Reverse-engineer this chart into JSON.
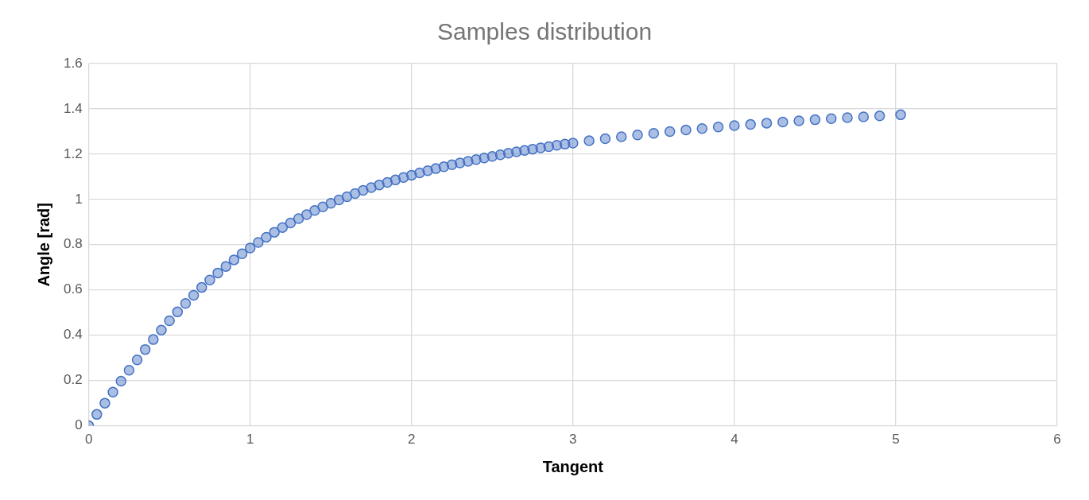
{
  "chart_data": {
    "type": "scatter",
    "title": "Samples distribution",
    "xlabel": "Tangent",
    "ylabel": "Angle [rad]",
    "series": [
      {
        "color": "#4472c4",
        "x": [
          0,
          0.05,
          0.1,
          0.15,
          0.2,
          0.25,
          0.3,
          0.35,
          0.4,
          0.45,
          0.5,
          0.55,
          0.6,
          0.65,
          0.7,
          0.75,
          0.8,
          0.85,
          0.9,
          0.95,
          1.0,
          1.05,
          1.1,
          1.15,
          1.2,
          1.25,
          1.3,
          1.35,
          1.4,
          1.45,
          1.5,
          1.55,
          1.6,
          1.65,
          1.7,
          1.75,
          1.8,
          1.85,
          1.9,
          1.95,
          2.0,
          2.05,
          2.1,
          2.15,
          2.2,
          2.25,
          2.3,
          2.35,
          2.4,
          2.45,
          2.5,
          2.55,
          2.6,
          2.65,
          2.7,
          2.75,
          2.8,
          2.85,
          2.9,
          2.95,
          3.0,
          3.1,
          3.2,
          3.3,
          3.4,
          3.5,
          3.6,
          3.7,
          3.8,
          3.9,
          4.0,
          4.1,
          4.2,
          4.3,
          4.4,
          4.5,
          4.6,
          4.7,
          4.8,
          4.9,
          5.03
        ],
        "values": [
          0,
          0.05,
          0.1,
          0.149,
          0.197,
          0.245,
          0.291,
          0.337,
          0.381,
          0.423,
          0.464,
          0.503,
          0.54,
          0.576,
          0.611,
          0.644,
          0.675,
          0.704,
          0.733,
          0.76,
          0.785,
          0.81,
          0.833,
          0.855,
          0.876,
          0.896,
          0.915,
          0.933,
          0.951,
          0.967,
          0.983,
          0.998,
          1.012,
          1.026,
          1.04,
          1.052,
          1.064,
          1.075,
          1.086,
          1.097,
          1.107,
          1.117,
          1.127,
          1.136,
          1.144,
          1.153,
          1.161,
          1.168,
          1.176,
          1.183,
          1.19,
          1.197,
          1.204,
          1.21,
          1.216,
          1.222,
          1.228,
          1.233,
          1.239,
          1.244,
          1.249,
          1.259,
          1.268,
          1.277,
          1.285,
          1.292,
          1.3,
          1.307,
          1.313,
          1.32,
          1.326,
          1.331,
          1.337,
          1.342,
          1.347,
          1.352,
          1.357,
          1.361,
          1.365,
          1.369,
          1.374
        ]
      }
    ],
    "xlim": [
      0,
      6
    ],
    "xticks": [
      0,
      1,
      2,
      3,
      4,
      5,
      6
    ],
    "ylim": [
      0,
      1.6
    ],
    "yticks": [
      0,
      0.2,
      0.4,
      0.6,
      0.8,
      1,
      1.2,
      1.4,
      1.6
    ],
    "grid": true,
    "legend": false,
    "marker": "circle"
  }
}
